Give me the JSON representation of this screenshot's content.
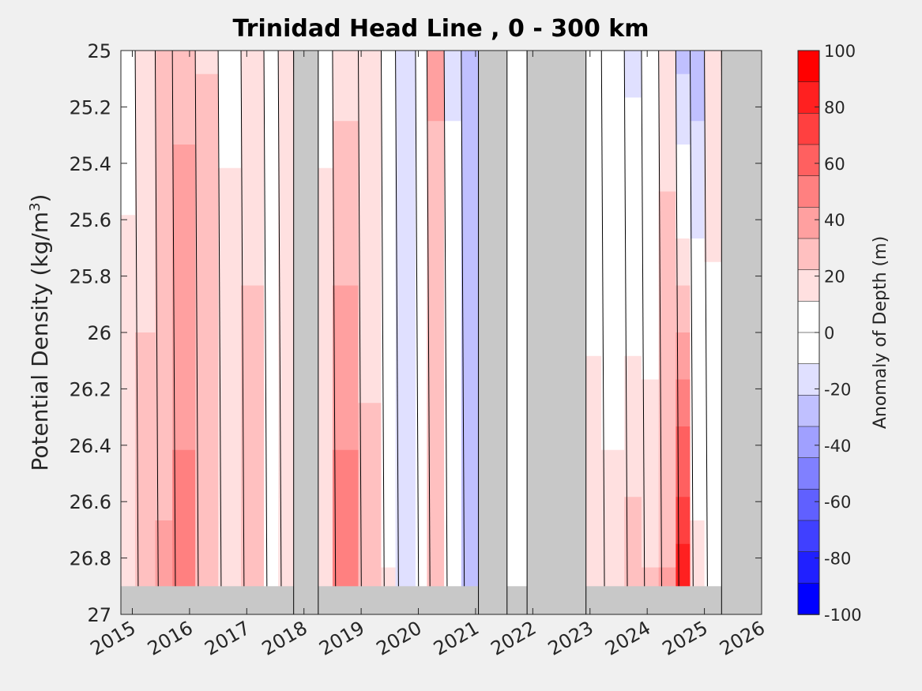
{
  "chart_data": {
    "type": "heatmap",
    "title": "Trinidad Head Line , 0 - 300 km",
    "ylabel": "Potential Density (kg/m",
    "ylabel_sup": "3",
    "ylabel_close": ")",
    "colorbar_label": "Anomaly of Depth (m)",
    "xlim": [
      2014.8,
      2026.0
    ],
    "ylim": [
      25,
      27
    ],
    "y_reversed": true,
    "x_ticks": [
      "2015",
      "2016",
      "2017",
      "2018",
      "2019",
      "2020",
      "2021",
      "2022",
      "2023",
      "2024",
      "2025",
      "2026"
    ],
    "y_ticks": [
      "25",
      "25.2",
      "25.4",
      "25.6",
      "25.8",
      "26",
      "26.2",
      "26.4",
      "26.6",
      "26.8",
      "27"
    ],
    "colorbar_ticks": [
      "100",
      "80",
      "60",
      "40",
      "20",
      "0",
      "-20",
      "-40",
      "-60",
      "-80",
      "-100"
    ],
    "colorbar_levels": [
      "#ff0000",
      "#ff2020",
      "#ff4040",
      "#ff6060",
      "#ff8080",
      "#ffa0a0",
      "#ffc0c0",
      "#ffe0e0",
      "#ffffff",
      "#ffffff",
      "#e0e0ff",
      "#c0c0ff",
      "#a0a0ff",
      "#8080ff",
      "#6060ff",
      "#4040ff",
      "#2020ff",
      "#0000ff"
    ],
    "no_data_color": "#c8c8c8",
    "no_data_bottom_density": 26.9,
    "data_gaps": [
      {
        "start": 2017.82,
        "end": 2018.25
      },
      {
        "start": 2021.05,
        "end": 2021.55
      },
      {
        "start": 2021.9,
        "end": 2022.93
      },
      {
        "start": 2025.3,
        "end": 2026.0
      }
    ],
    "anomaly_bands": [
      {
        "start": 2014.8,
        "end": 2015.05,
        "top": 8,
        "bottom": 18
      },
      {
        "start": 2015.05,
        "end": 2015.4,
        "top": 15,
        "bottom": 30
      },
      {
        "start": 2015.4,
        "end": 2015.7,
        "top": 25,
        "bottom": 35
      },
      {
        "start": 2015.7,
        "end": 2016.1,
        "top": 30,
        "bottom": 50
      },
      {
        "start": 2016.1,
        "end": 2016.5,
        "top": 22,
        "bottom": 30
      },
      {
        "start": 2016.5,
        "end": 2016.9,
        "top": 10,
        "bottom": 15
      },
      {
        "start": 2016.9,
        "end": 2017.3,
        "top": 18,
        "bottom": 28
      },
      {
        "start": 2017.3,
        "end": 2017.55,
        "top": 5,
        "bottom": 10
      },
      {
        "start": 2017.55,
        "end": 2017.82,
        "top": 12,
        "bottom": 22
      },
      {
        "start": 2018.25,
        "end": 2018.5,
        "top": 8,
        "bottom": 22
      },
      {
        "start": 2018.5,
        "end": 2018.95,
        "top": 18,
        "bottom": 55
      },
      {
        "start": 2018.95,
        "end": 2019.35,
        "top": 12,
        "bottom": 28
      },
      {
        "start": 2019.35,
        "end": 2019.6,
        "top": 3,
        "bottom": 12
      },
      {
        "start": 2019.6,
        "end": 2019.95,
        "top": -15,
        "bottom": -12
      },
      {
        "start": 2019.95,
        "end": 2020.15,
        "top": -8,
        "bottom": 5
      },
      {
        "start": 2020.15,
        "end": 2020.45,
        "top": 35,
        "bottom": 22
      },
      {
        "start": 2020.45,
        "end": 2020.75,
        "top": -12,
        "bottom": -5
      },
      {
        "start": 2020.75,
        "end": 2021.05,
        "top": -25,
        "bottom": -28
      },
      {
        "start": 2021.55,
        "end": 2021.9,
        "top": 5,
        "bottom": 3
      },
      {
        "start": 2022.93,
        "end": 2023.2,
        "top": 10,
        "bottom": 12
      },
      {
        "start": 2023.2,
        "end": 2023.6,
        "top": -5,
        "bottom": 18
      },
      {
        "start": 2023.6,
        "end": 2023.9,
        "top": -15,
        "bottom": 32
      },
      {
        "start": 2023.9,
        "end": 2024.2,
        "top": -8,
        "bottom": 25
      },
      {
        "start": 2024.2,
        "end": 2024.5,
        "top": 18,
        "bottom": 35
      },
      {
        "start": 2024.5,
        "end": 2024.75,
        "top": -30,
        "bottom": 95
      },
      {
        "start": 2024.75,
        "end": 2025.0,
        "top": -28,
        "bottom": 20
      },
      {
        "start": 2025.0,
        "end": 2025.3,
        "top": 15,
        "bottom": 5
      }
    ]
  }
}
